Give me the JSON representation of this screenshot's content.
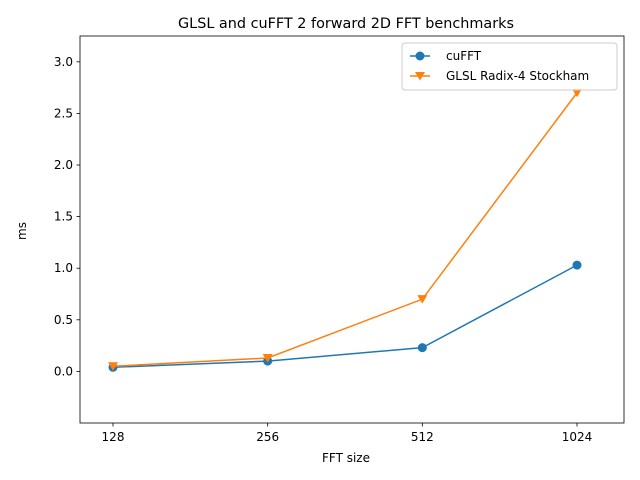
{
  "chart_data": {
    "type": "line",
    "title": "GLSL and cuFFT 2 forward 2D FFT benchmarks",
    "xlabel": "FFT size",
    "ylabel": "ms",
    "categories": [
      "128",
      "256",
      "512",
      "1024"
    ],
    "ylim": [
      -0.5,
      3.25
    ],
    "yticks": [
      0.0,
      0.5,
      1.0,
      1.5,
      2.0,
      2.5,
      3.0
    ],
    "ytick_labels": [
      "0.0",
      "0.5",
      "1.0",
      "1.5",
      "2.0",
      "2.5",
      "3.0"
    ],
    "grid": false,
    "legend_position": "top-right",
    "series": [
      {
        "name": "cuFFT",
        "values": [
          0.04,
          0.1,
          0.23,
          1.03
        ],
        "color": "#1f77b4",
        "marker": "circle"
      },
      {
        "name": "GLSL Radix-4 Stockham",
        "values": [
          0.05,
          0.13,
          0.7,
          2.7
        ],
        "color": "#ff7f0e",
        "marker": "triangle-down"
      }
    ]
  }
}
